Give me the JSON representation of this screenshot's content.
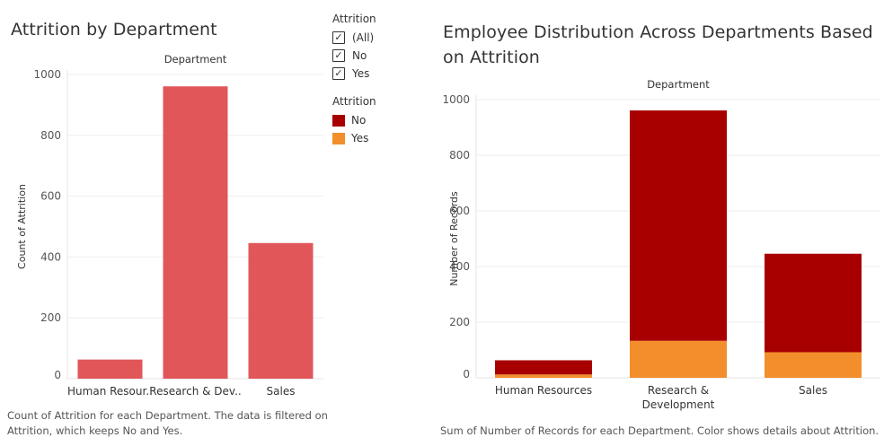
{
  "left_panel": {
    "title": "Attrition by Department",
    "caption": "Count of Attrition for each Department. The data is filtered on Attrition, which keeps No and Yes."
  },
  "right_panel": {
    "title": "Employee Distribution Across Departments Based on Attrition",
    "caption": "Sum of Number of Records for each Department.  Color shows details about Attrition."
  },
  "filter_legend": {
    "title": "Attrition",
    "items": [
      {
        "label": "(All)",
        "checked": true
      },
      {
        "label": "No",
        "checked": true
      },
      {
        "label": "Yes",
        "checked": true
      }
    ]
  },
  "color_legend": {
    "title": "Attrition",
    "items": [
      {
        "label": "No",
        "color": "#a80000"
      },
      {
        "label": "Yes",
        "color": "#f28e2b"
      }
    ]
  },
  "chart_data": [
    {
      "type": "bar",
      "title": "Attrition by Department",
      "header": "Department",
      "categories": [
        "Human Resour..",
        "Research & Dev..",
        "Sales"
      ],
      "values": [
        63,
        961,
        446
      ],
      "ylabel": "Count of Attrition",
      "ylim": [
        0,
        1000
      ],
      "yticks": [
        0,
        200,
        400,
        600,
        800,
        1000
      ],
      "color": "#e15759",
      "grid": true
    },
    {
      "type": "bar",
      "stacked": true,
      "title": "Employee Distribution Across Departments Based on Attrition",
      "header": "Department",
      "categories": [
        "Human Resources",
        "Research & Development",
        "Sales"
      ],
      "series": [
        {
          "name": "Yes",
          "values": [
            12,
            133,
            92
          ],
          "color": "#f28e2b"
        },
        {
          "name": "No",
          "values": [
            51,
            828,
            354
          ],
          "color": "#a80000"
        }
      ],
      "ylabel": "Number of Records",
      "ylim": [
        0,
        1000
      ],
      "yticks": [
        0,
        200,
        400,
        600,
        800,
        1000
      ],
      "legend": "top-left",
      "grid": true
    }
  ]
}
